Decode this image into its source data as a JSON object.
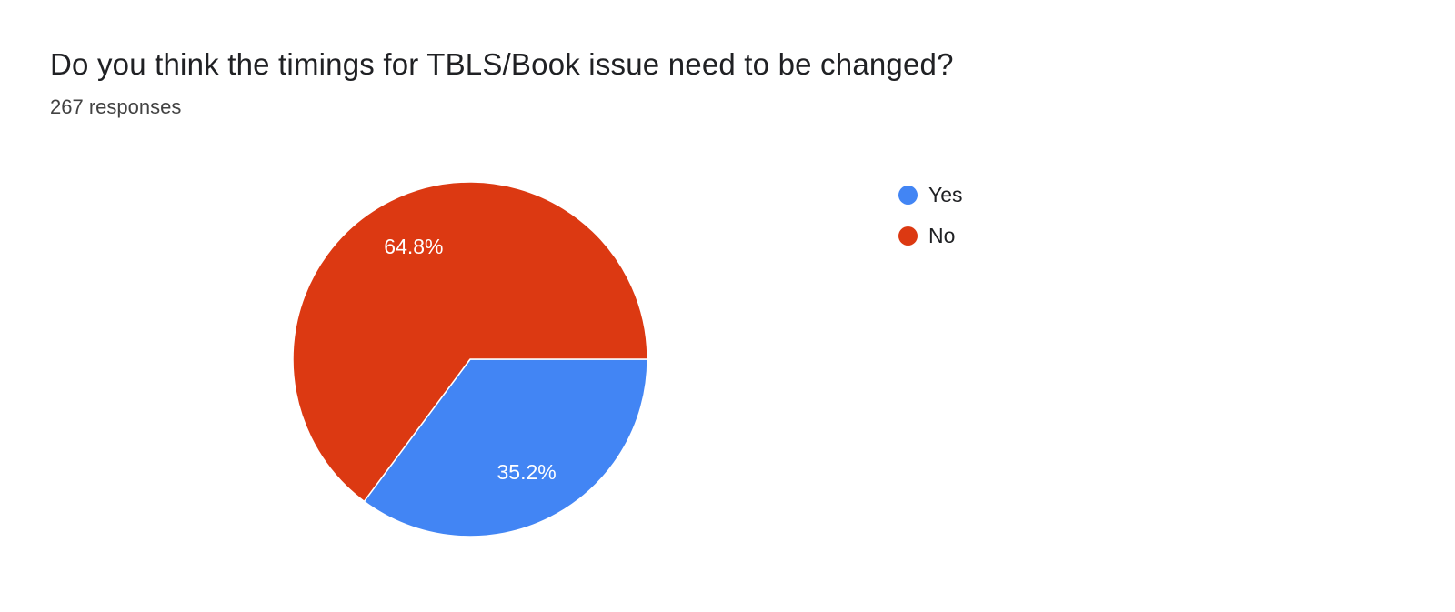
{
  "page": {
    "background": "#ffffff"
  },
  "chart_data": {
    "type": "pie",
    "title": "Do you think the timings for TBLS/Book issue need to be changed?",
    "responses_label": "267 responses",
    "responses_count": 267,
    "legend_position": "right",
    "start_angle_deg": 90,
    "direction": "clockwise",
    "slice_border_color": "#ffffff",
    "data_label_color": "#ffffff",
    "slices": [
      {
        "label": "Yes",
        "value_pct": 35.2,
        "display": "35.2%",
        "color": "#4285f4"
      },
      {
        "label": "No",
        "value_pct": 64.8,
        "display": "64.8%",
        "color": "#dc3912"
      }
    ]
  }
}
